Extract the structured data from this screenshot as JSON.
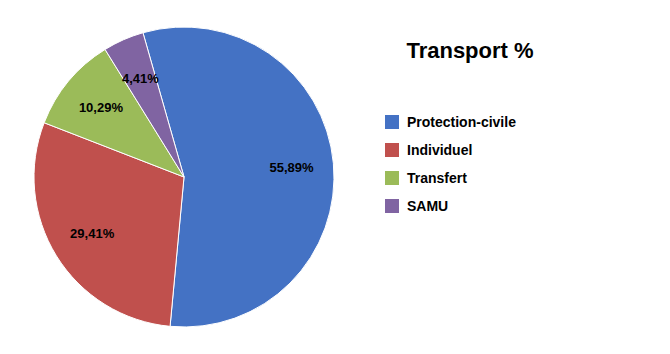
{
  "chart_data": {
    "type": "pie",
    "title": "Transport %",
    "categories": [
      "Protection-civile",
      "Individuel",
      "Transfert",
      "SAMU"
    ],
    "values": [
      55.89,
      29.41,
      10.29,
      4.41
    ],
    "value_labels": [
      "55,89%",
      "29,41%",
      "10,29%",
      "4,41%"
    ],
    "colors": [
      "#4472C4",
      "#C0504D",
      "#9BBB59",
      "#8064A2"
    ],
    "data_labels": true,
    "legend": "right"
  }
}
